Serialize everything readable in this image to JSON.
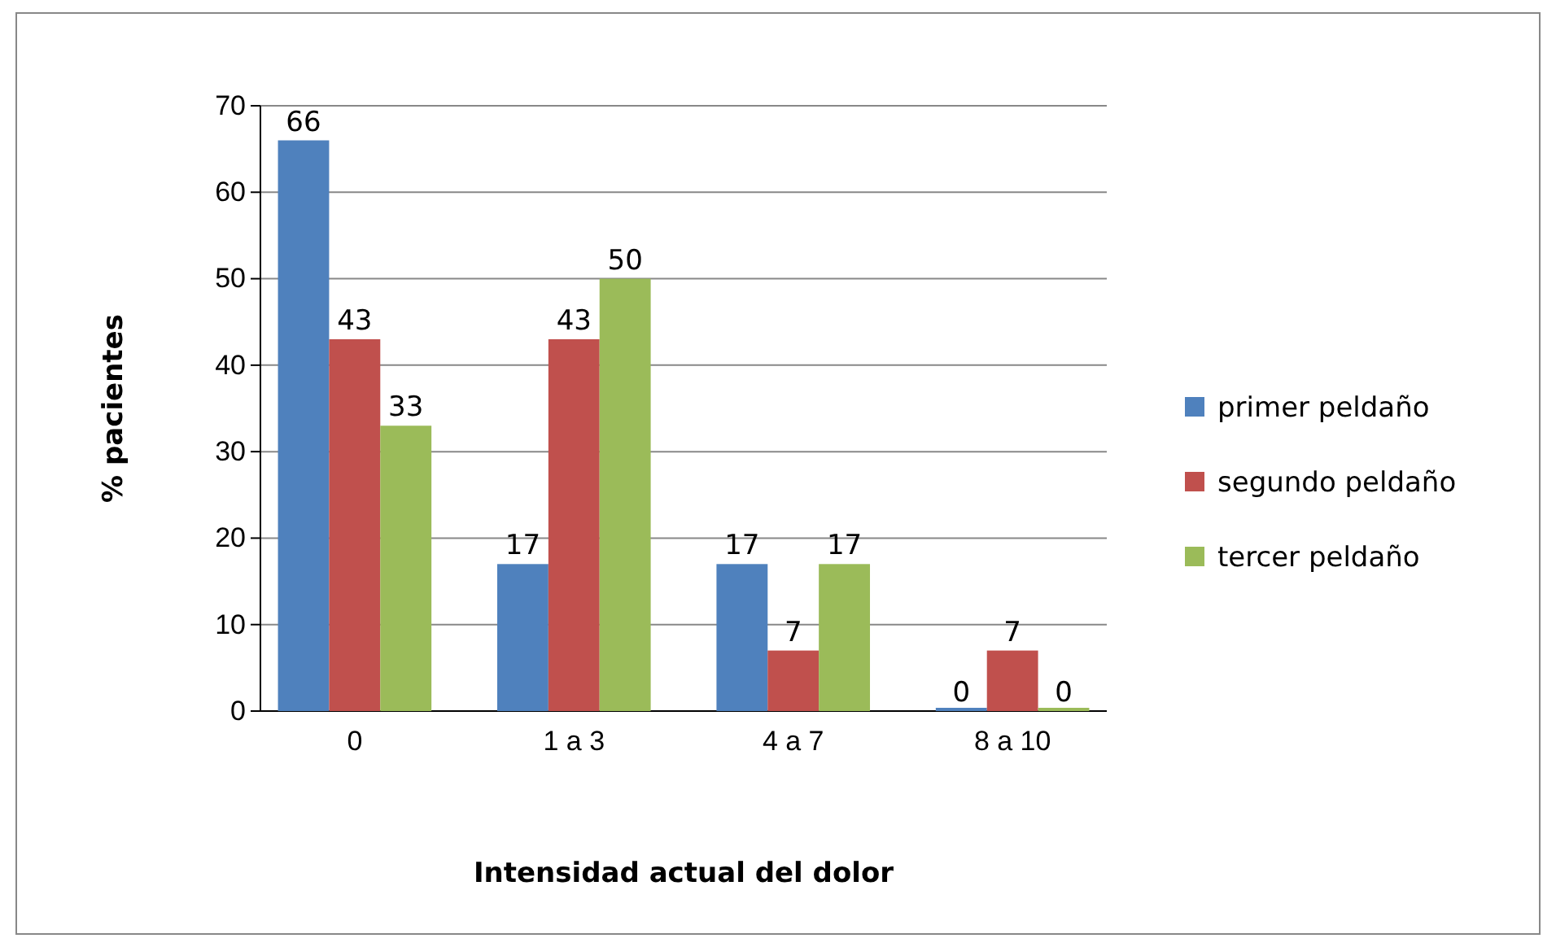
{
  "chart_data": {
    "type": "bar",
    "xlabel": "Intensidad actual del dolor",
    "ylabel": "% pacientes",
    "categories": [
      "0",
      "1 a 3",
      "4 a 7",
      "8 a 10"
    ],
    "series": [
      {
        "name": "primer peldaño",
        "color": "#4f81bd",
        "values": [
          66,
          17,
          17,
          0
        ]
      },
      {
        "name": "segundo peldaño",
        "color": "#c0504d",
        "values": [
          43,
          43,
          7,
          7
        ]
      },
      {
        "name": "tercer peldaño",
        "color": "#9bbb59",
        "values": [
          33,
          50,
          17,
          0
        ]
      }
    ],
    "ylim": [
      0,
      70
    ],
    "yticks": [
      0,
      10,
      20,
      30,
      40,
      50,
      60,
      70
    ],
    "grid": "y",
    "legend": "right",
    "data_labels": true
  }
}
